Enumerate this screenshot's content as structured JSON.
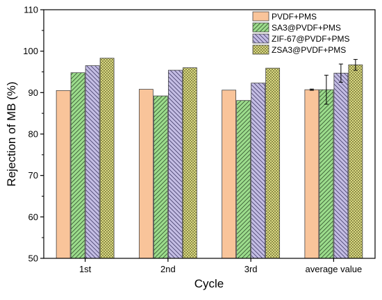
{
  "chart_data": {
    "type": "bar",
    "xlabel": "Cycle",
    "ylabel": "Rejection of MB (%)",
    "ylim": [
      50,
      110
    ],
    "yticks": [
      50,
      60,
      70,
      80,
      90,
      100,
      110
    ],
    "categories": [
      "1st",
      "2nd",
      "3rd",
      "average value"
    ],
    "legend_position": "top-right",
    "grid": false,
    "series": [
      {
        "name": "PVDF+PMS",
        "values": [
          90.5,
          90.8,
          90.6,
          90.7
        ],
        "errors": [
          null,
          null,
          null,
          0.15
        ],
        "fill": "#f9c49a",
        "pattern": "solid"
      },
      {
        "name": "SA3@PVDF+PMS",
        "values": [
          94.8,
          89.2,
          88.1,
          90.7
        ],
        "errors": [
          null,
          null,
          null,
          3.5
        ],
        "fill": "#9cdc8c",
        "pattern": "diagonal-up"
      },
      {
        "name": "ZIF-67@PVDF+PMS",
        "values": [
          96.5,
          95.4,
          92.3,
          94.7
        ],
        "errors": [
          null,
          null,
          null,
          2.2
        ],
        "fill": "#c4bde4",
        "pattern": "diagonal-down"
      },
      {
        "name": "ZSA3@PVDF+PMS",
        "values": [
          98.3,
          96.0,
          95.9,
          96.7
        ],
        "errors": [
          null,
          null,
          null,
          1.3
        ],
        "fill": "#e4e48c",
        "pattern": "crosshatch"
      }
    ]
  }
}
